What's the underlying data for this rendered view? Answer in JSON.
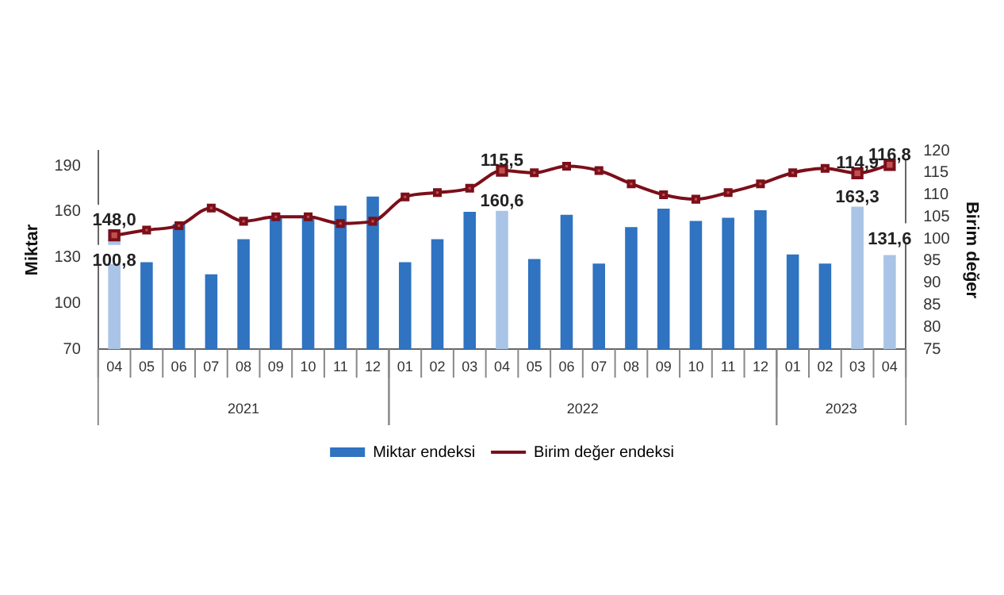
{
  "chart_data": {
    "type": "bar",
    "categories": [
      "04",
      "05",
      "06",
      "07",
      "08",
      "09",
      "10",
      "11",
      "12",
      "01",
      "02",
      "03",
      "04",
      "05",
      "06",
      "07",
      "08",
      "09",
      "10",
      "11",
      "12",
      "01",
      "02",
      "03",
      "04"
    ],
    "annotations": [
      "2021",
      "2022",
      "2023"
    ],
    "ylabel": "Miktar",
    "y2label": "Birim değer",
    "ylim": [
      70,
      200
    ],
    "yticks": [
      70,
      100,
      130,
      160,
      190
    ],
    "y2lim": [
      75,
      120
    ],
    "y2ticks": [
      75,
      80,
      85,
      90,
      95,
      100,
      105,
      110,
      115,
      120
    ],
    "legend": "bottom",
    "grid": false,
    "marker": "square",
    "series": [
      {
        "name": "Miktar endeksi",
        "color": "#2f73c1",
        "colors": [
          "#a9c4e6",
          "#2f73c1",
          "#2f73c1",
          "#2f73c1",
          "#2f73c1",
          "#2f73c1",
          "#2f73c1",
          "#2f73c1",
          "#2f73c1",
          "#2f73c1",
          "#2f73c1",
          "#2f73c1",
          "#a9c4e6",
          "#2f73c1",
          "#2f73c1",
          "#2f73c1",
          "#2f73c1",
          "#2f73c1",
          "#2f73c1",
          "#2f73c1",
          "#2f73c1",
          "#2f73c1",
          "#2f73c1",
          "#a9c4e6",
          "#a9c4e6"
        ],
        "values": [
          148.0,
          127,
          152,
          119,
          142,
          157,
          157,
          164,
          170,
          127,
          142,
          160,
          160.6,
          129,
          158,
          126,
          150,
          162,
          154,
          156,
          161,
          132,
          126,
          163.3,
          131.6
        ],
        "value_labels": [
          "148,0",
          null,
          null,
          null,
          null,
          null,
          null,
          null,
          null,
          null,
          null,
          null,
          "160,6",
          null,
          null,
          null,
          null,
          null,
          null,
          null,
          null,
          null,
          null,
          "163,3",
          "131,6"
        ]
      },
      {
        "name": "Birim değer endeksi",
        "type": "line",
        "axis": "y2",
        "color": "#7b0f1a",
        "values": [
          100.8,
          102,
          103,
          107,
          104,
          105,
          105,
          103.5,
          104,
          109.5,
          110.5,
          111.5,
          115.5,
          115,
          116.5,
          115.5,
          112.5,
          110,
          109,
          110.5,
          112.5,
          115,
          116,
          114.9,
          116.8
        ],
        "value_labels": [
          "100,8",
          null,
          null,
          null,
          null,
          null,
          null,
          null,
          null,
          null,
          null,
          null,
          "115,5",
          null,
          null,
          null,
          null,
          null,
          null,
          null,
          null,
          null,
          null,
          "114,9",
          "116,8"
        ]
      }
    ]
  }
}
